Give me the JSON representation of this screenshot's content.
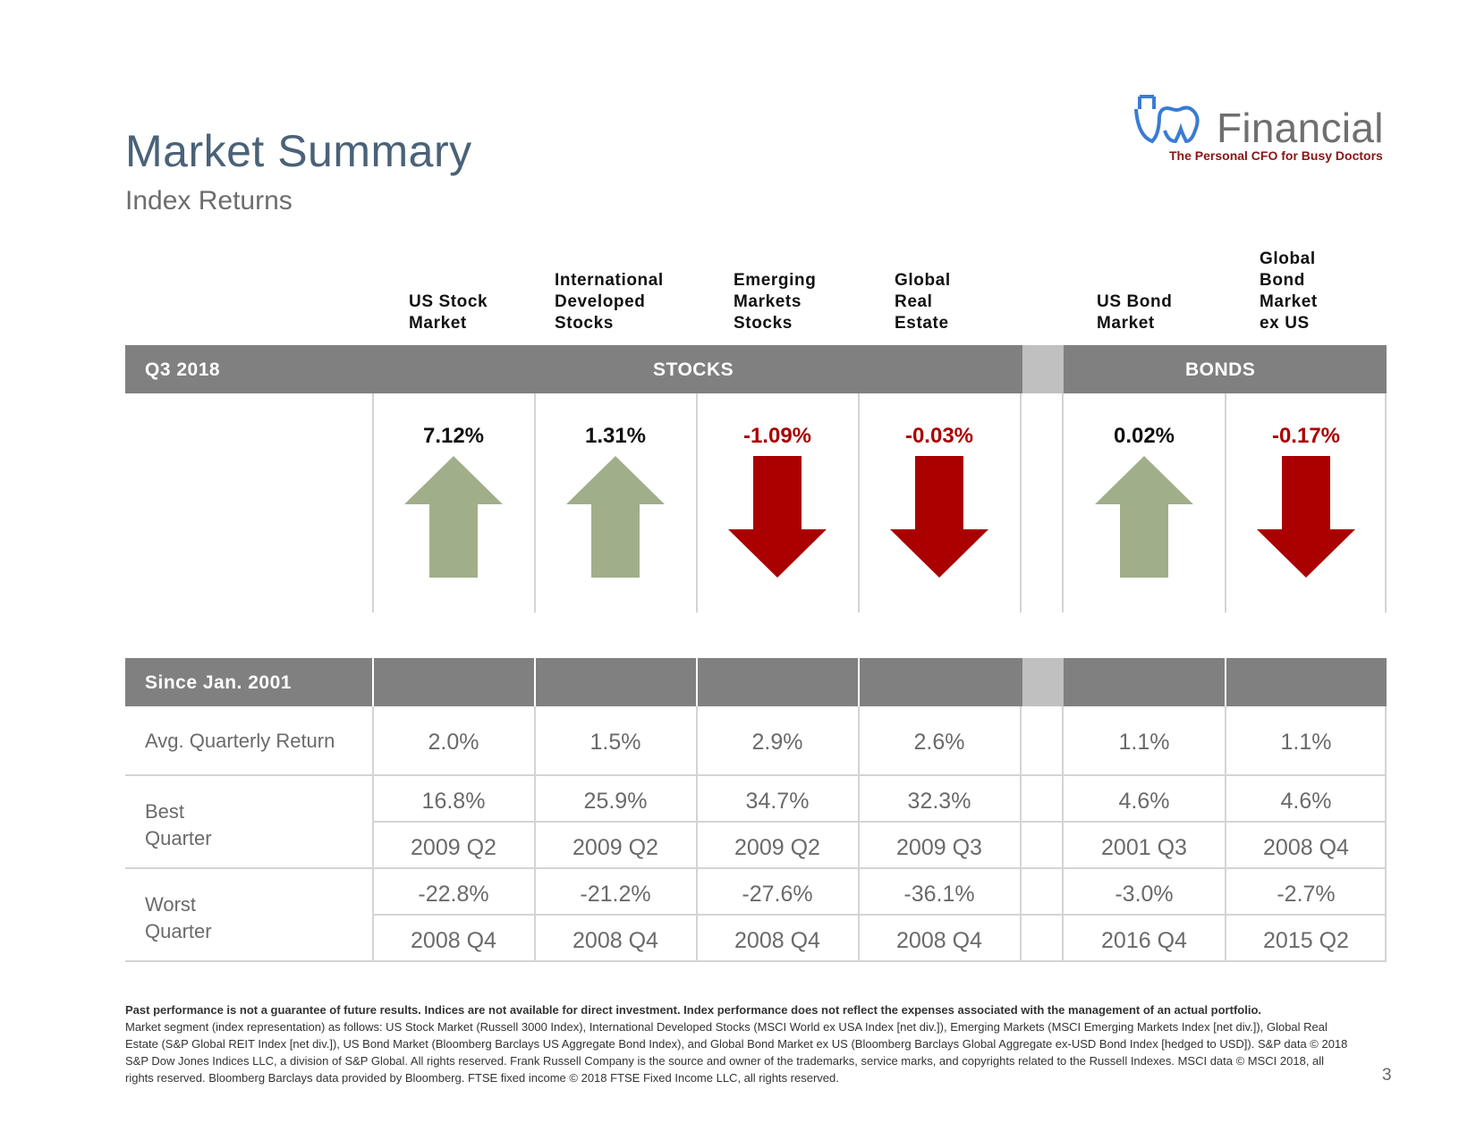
{
  "header": {
    "title": "Market Summary",
    "subtitle": "Index Returns"
  },
  "logo": {
    "wordmark": "Financial",
    "tagline": "The Personal CFO for Busy Doctors",
    "colors": {
      "mark": "#3a7bd5",
      "wordmark": "#6f6f6f",
      "tagline": "#8a1515"
    }
  },
  "columns": [
    {
      "header": "US Stock\nMarket"
    },
    {
      "header": "International\nDeveloped\nStocks"
    },
    {
      "header": "Emerging\nMarkets\nStocks"
    },
    {
      "header": "Global\nReal\nEstate"
    },
    {
      "header": "US Bond\nMarket"
    },
    {
      "header": "Global\nBond\nMarket\nex US"
    }
  ],
  "quarter": {
    "label": "Q3 2018",
    "stocks_label": "STOCKS",
    "bonds_label": "BONDS",
    "returns": [
      {
        "value": "7.12%",
        "direction": "up"
      },
      {
        "value": "1.31%",
        "direction": "up"
      },
      {
        "value": "-1.09%",
        "direction": "down"
      },
      {
        "value": "-0.03%",
        "direction": "down"
      },
      {
        "value": "0.02%",
        "direction": "up"
      },
      {
        "value": "-0.17%",
        "direction": "down"
      }
    ]
  },
  "since": {
    "label": "Since Jan. 2001",
    "avg_label": "Avg. Quarterly Return",
    "avg": [
      "2.0%",
      "1.5%",
      "2.9%",
      "2.6%",
      "1.1%",
      "1.1%"
    ],
    "best_label": "Best\nQuarter",
    "best_values": [
      "16.8%",
      "25.9%",
      "34.7%",
      "32.3%",
      "4.6%",
      "4.6%"
    ],
    "best_quarters": [
      "2009 Q2",
      "2009 Q2",
      "2009 Q2",
      "2009 Q3",
      "2001 Q3",
      "2008 Q4"
    ],
    "worst_label": "Worst\nQuarter",
    "worst_values": [
      "-22.8%",
      "-21.2%",
      "-27.6%",
      "-36.1%",
      "-3.0%",
      "-2.7%"
    ],
    "worst_quarters": [
      "2008 Q4",
      "2008 Q4",
      "2008 Q4",
      "2008 Q4",
      "2016 Q4",
      "2015 Q2"
    ]
  },
  "colors": {
    "up_arrow": "#a1ae8a",
    "down_arrow": "#aa0000",
    "negative_text": "#aa0000",
    "positive_text": "#111111",
    "band": "#808080",
    "band_gap": "#c0c0c0"
  },
  "footer": {
    "bold_line": "Past performance is not a guarantee of future results. Indices are not available for direct investment. Index performance does not reflect the expenses associated with the management of an actual portfolio.",
    "body": "Market segment (index representation) as follows: US Stock Market (Russell 3000 Index), International Developed Stocks (MSCI World ex USA Index [net div.]), Emerging Markets (MSCI Emerging Markets Index [net div.]), Global Real Estate (S&P Global REIT Index [net div.]), US Bond Market (Bloomberg Barclays US Aggregate Bond Index), and Global Bond Market ex US (Bloomberg Barclays Global Aggregate ex-USD Bond Index [hedged to USD]). S&P data © 2018 S&P Dow Jones Indices LLC, a division of S&P Global. All rights reserved. Frank Russell Company is the source and owner of the trademarks, service marks, and copyrights related to the Russell Indexes. MSCI data © MSCI 2018, all rights reserved. Bloomberg Barclays data provided by Bloomberg. FTSE fixed income © 2018 FTSE Fixed Income LLC, all rights reserved.",
    "page_number": "3"
  }
}
